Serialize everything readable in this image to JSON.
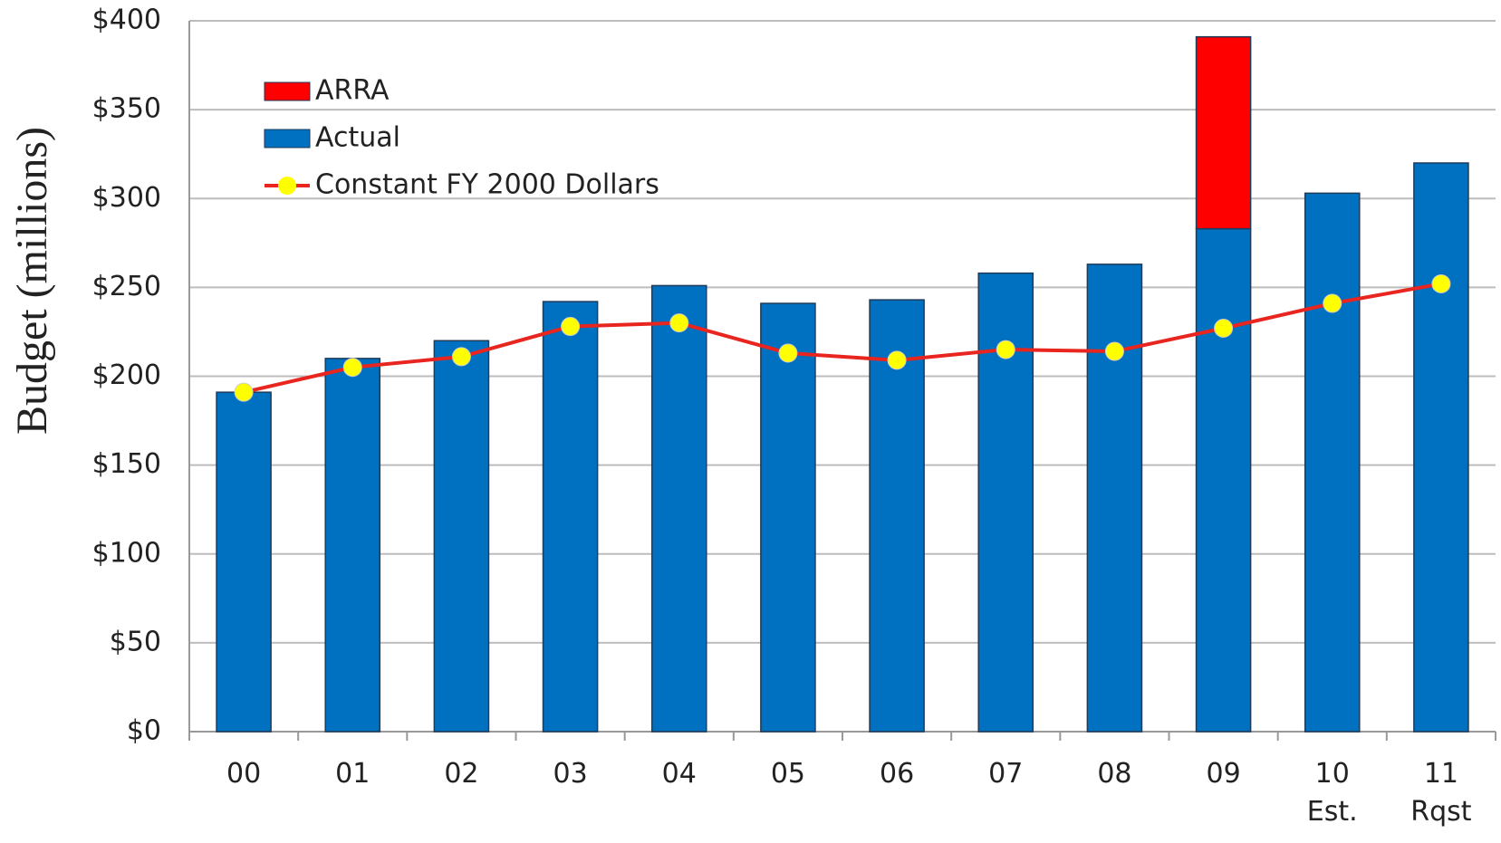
{
  "chart_data": {
    "type": "bar",
    "y_label": "Budget (millions)",
    "categories": [
      "00",
      "01",
      "02",
      "03",
      "04",
      "05",
      "06",
      "07",
      "08",
      "09",
      "10\nEst.",
      "11\nRqst"
    ],
    "series": [
      {
        "name": "ARRA",
        "type": "bar",
        "color": "#ff0000",
        "values": [
          null,
          null,
          null,
          null,
          null,
          null,
          null,
          null,
          null,
          108,
          null,
          null
        ]
      },
      {
        "name": "Actual",
        "type": "bar",
        "color": "#0070c0",
        "values": [
          191,
          210,
          220,
          242,
          251,
          241,
          243,
          258,
          263,
          283,
          303,
          320
        ]
      },
      {
        "name": "Constant FY 2000 Dollars",
        "type": "line",
        "color": "#e8251f",
        "marker_color": "#ffff00",
        "values": [
          191,
          205,
          211,
          228,
          230,
          213,
          209,
          215,
          214,
          227,
          241,
          252
        ]
      }
    ],
    "stacked": true,
    "ylim": [
      0,
      400
    ],
    "yticks": [
      {
        "value": 0,
        "label": "$0"
      },
      {
        "value": 50,
        "label": "$50"
      },
      {
        "value": 100,
        "label": "$100"
      },
      {
        "value": 150,
        "label": "$150"
      },
      {
        "value": 200,
        "label": "$200"
      },
      {
        "value": 250,
        "label": "$250"
      },
      {
        "value": 300,
        "label": "$300"
      },
      {
        "value": 350,
        "label": "$350"
      },
      {
        "value": 400,
        "label": "$400"
      }
    ],
    "grid": true,
    "legend": "upper left"
  }
}
